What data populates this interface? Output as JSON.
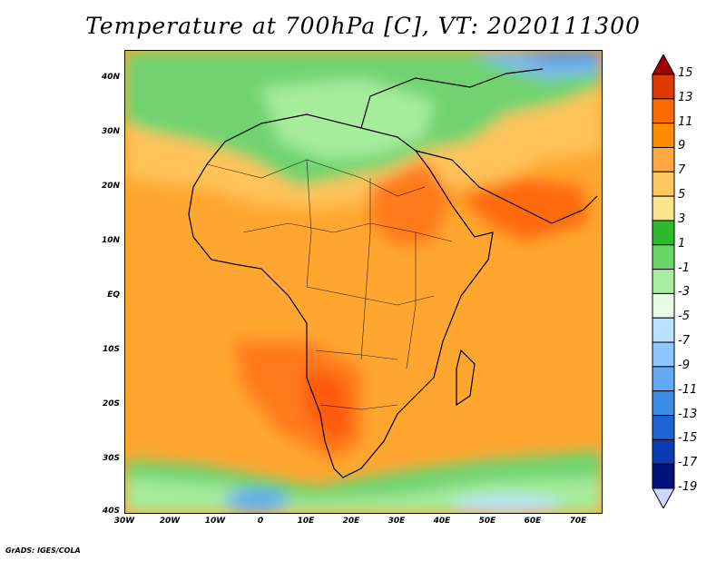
{
  "title": "Temperature at 700hPa [C], VT: 2020111300",
  "credit": "GrADS: IGES/COLA",
  "map": {
    "region": "Africa",
    "projection": "lat-lon",
    "lon_range": [
      -30,
      75
    ],
    "lat_range": [
      -40,
      45
    ],
    "lat_ticks": [
      "40N",
      "30N",
      "20N",
      "10N",
      "EQ",
      "10S",
      "20S",
      "30S",
      "40S"
    ],
    "lon_ticks": [
      "30W",
      "20W",
      "10W",
      "0",
      "10E",
      "20E",
      "30E",
      "40E",
      "50E",
      "60E",
      "70E"
    ]
  },
  "colorbar": {
    "labels": [
      "15",
      "13",
      "11",
      "9",
      "7",
      "5",
      "3",
      "1",
      "-1",
      "-3",
      "-5",
      "-7",
      "-9",
      "-11",
      "-13",
      "-15",
      "-17",
      "-19"
    ],
    "colors": [
      "#a00000",
      "#e03a00",
      "#ff6a00",
      "#ff8c00",
      "#ffa940",
      "#ffc860",
      "#fbe48c",
      "#2eb82e",
      "#6ad66a",
      "#a8eea0",
      "#e6fce6",
      "#b8e2ff",
      "#8cc8ff",
      "#64aaf5",
      "#3c8ce6",
      "#1e64d2",
      "#0a3caf",
      "#00107a",
      "#ccd8ff"
    ]
  }
}
